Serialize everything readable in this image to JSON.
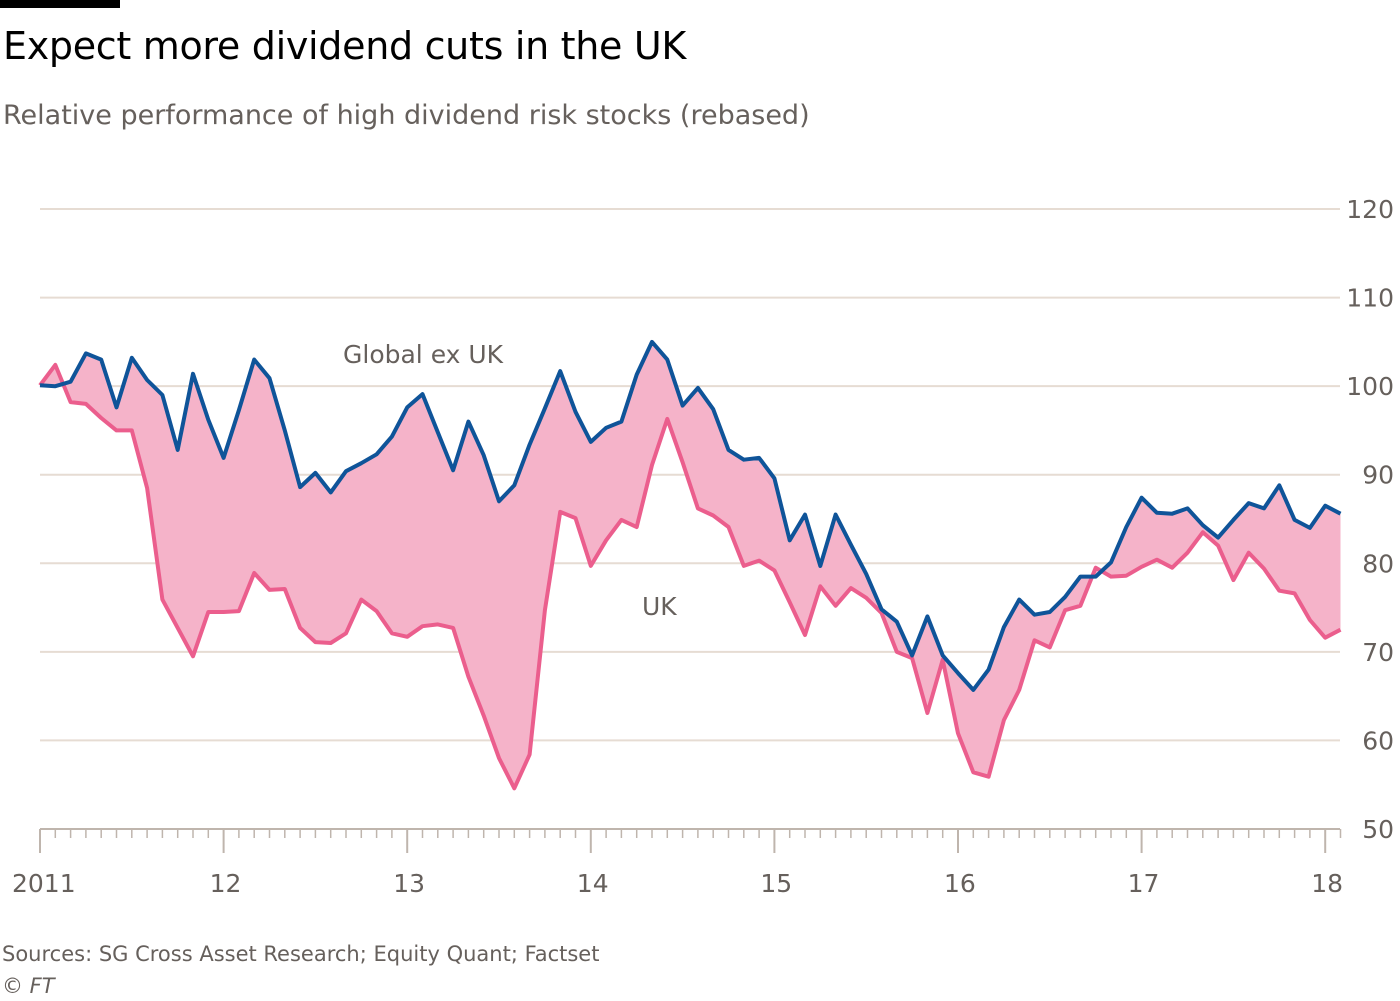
{
  "title": "Expect more dividend cuts in the UK",
  "subtitle": "Relative performance of high dividend risk stocks (rebased)",
  "source": "Sources: SG Cross Asset Research; Equity Quant; Factset",
  "credit": "© FT",
  "chart_data": {
    "type": "line",
    "title": "Expect more dividend cuts in the UK",
    "subtitle": "Relative performance of high dividend risk stocks (rebased)",
    "x_start": "2011-01",
    "x_frequency": "monthly",
    "x_ticks": [
      "2011",
      "12",
      "13",
      "14",
      "15",
      "16",
      "17",
      "18"
    ],
    "y_ticks": [
      50,
      60,
      70,
      80,
      90,
      100,
      110,
      120
    ],
    "ylim": [
      50,
      120
    ],
    "grid": true,
    "fill_between_series": true,
    "colors": {
      "global": "#0f5499",
      "uk": "#eb5e8d",
      "fill": "#f5b3c9",
      "grid": "#e6dcd3",
      "axis": "#bfb5ad"
    },
    "series": [
      {
        "name": "Global ex UK",
        "values": [
          100.1,
          100,
          100.5,
          103.7,
          103,
          97.6,
          103.2,
          100.7,
          99,
          92.8,
          101.4,
          96.2,
          91.9,
          97.3,
          103,
          100.9,
          95,
          88.6,
          90.2,
          88,
          90.4,
          91.3,
          92.3,
          94.3,
          97.6,
          99.1,
          94.8,
          90.5,
          96,
          92.2,
          87,
          88.8,
          93.4,
          97.5,
          101.7,
          97.1,
          93.7,
          95.3,
          96,
          101.3,
          105,
          103,
          97.8,
          99.8,
          97.4,
          92.8,
          91.7,
          91.9,
          89.6,
          82.6,
          85.5,
          79.7,
          85.5,
          82.1,
          78.8,
          74.8,
          73.4,
          69.6,
          74,
          69.6,
          67.6,
          65.7,
          68,
          72.8,
          75.9,
          74.2,
          74.5,
          76.2,
          78.5,
          78.5,
          80.1,
          84.1,
          87.4,
          85.7,
          85.6,
          86.2,
          84.3,
          82.9,
          84.9,
          86.8,
          86.2,
          88.8,
          84.9,
          84,
          86.5,
          85.6
        ]
      },
      {
        "name": "UK",
        "values": [
          100.1,
          102.4,
          98.2,
          98,
          96.4,
          95,
          95,
          88.5,
          75.9,
          72.7,
          69.5,
          74.5,
          74.5,
          74.6,
          78.9,
          77,
          77.1,
          72.7,
          71.1,
          71,
          72.1,
          75.9,
          74.6,
          72.1,
          71.7,
          72.9,
          73.1,
          72.7,
          67.2,
          62.8,
          58,
          54.6,
          58.4,
          74.7,
          85.8,
          85.1,
          79.7,
          82.6,
          84.9,
          84.1,
          91.1,
          96.3,
          91.4,
          86.2,
          85.4,
          84.1,
          79.7,
          80.3,
          79.2,
          75.6,
          71.9,
          77.4,
          75.2,
          77.2,
          76.1,
          74.4,
          70,
          69.3,
          63.1,
          69.1,
          60.8,
          56.4,
          55.9,
          62.3,
          65.7,
          71.3,
          70.5,
          74.7,
          75.2,
          79.5,
          78.5,
          78.6,
          79.6,
          80.4,
          79.5,
          81.2,
          83.5,
          82,
          78.1,
          81.2,
          79.4,
          76.9,
          76.6,
          73.6,
          71.6,
          72.5
        ]
      }
    ]
  }
}
